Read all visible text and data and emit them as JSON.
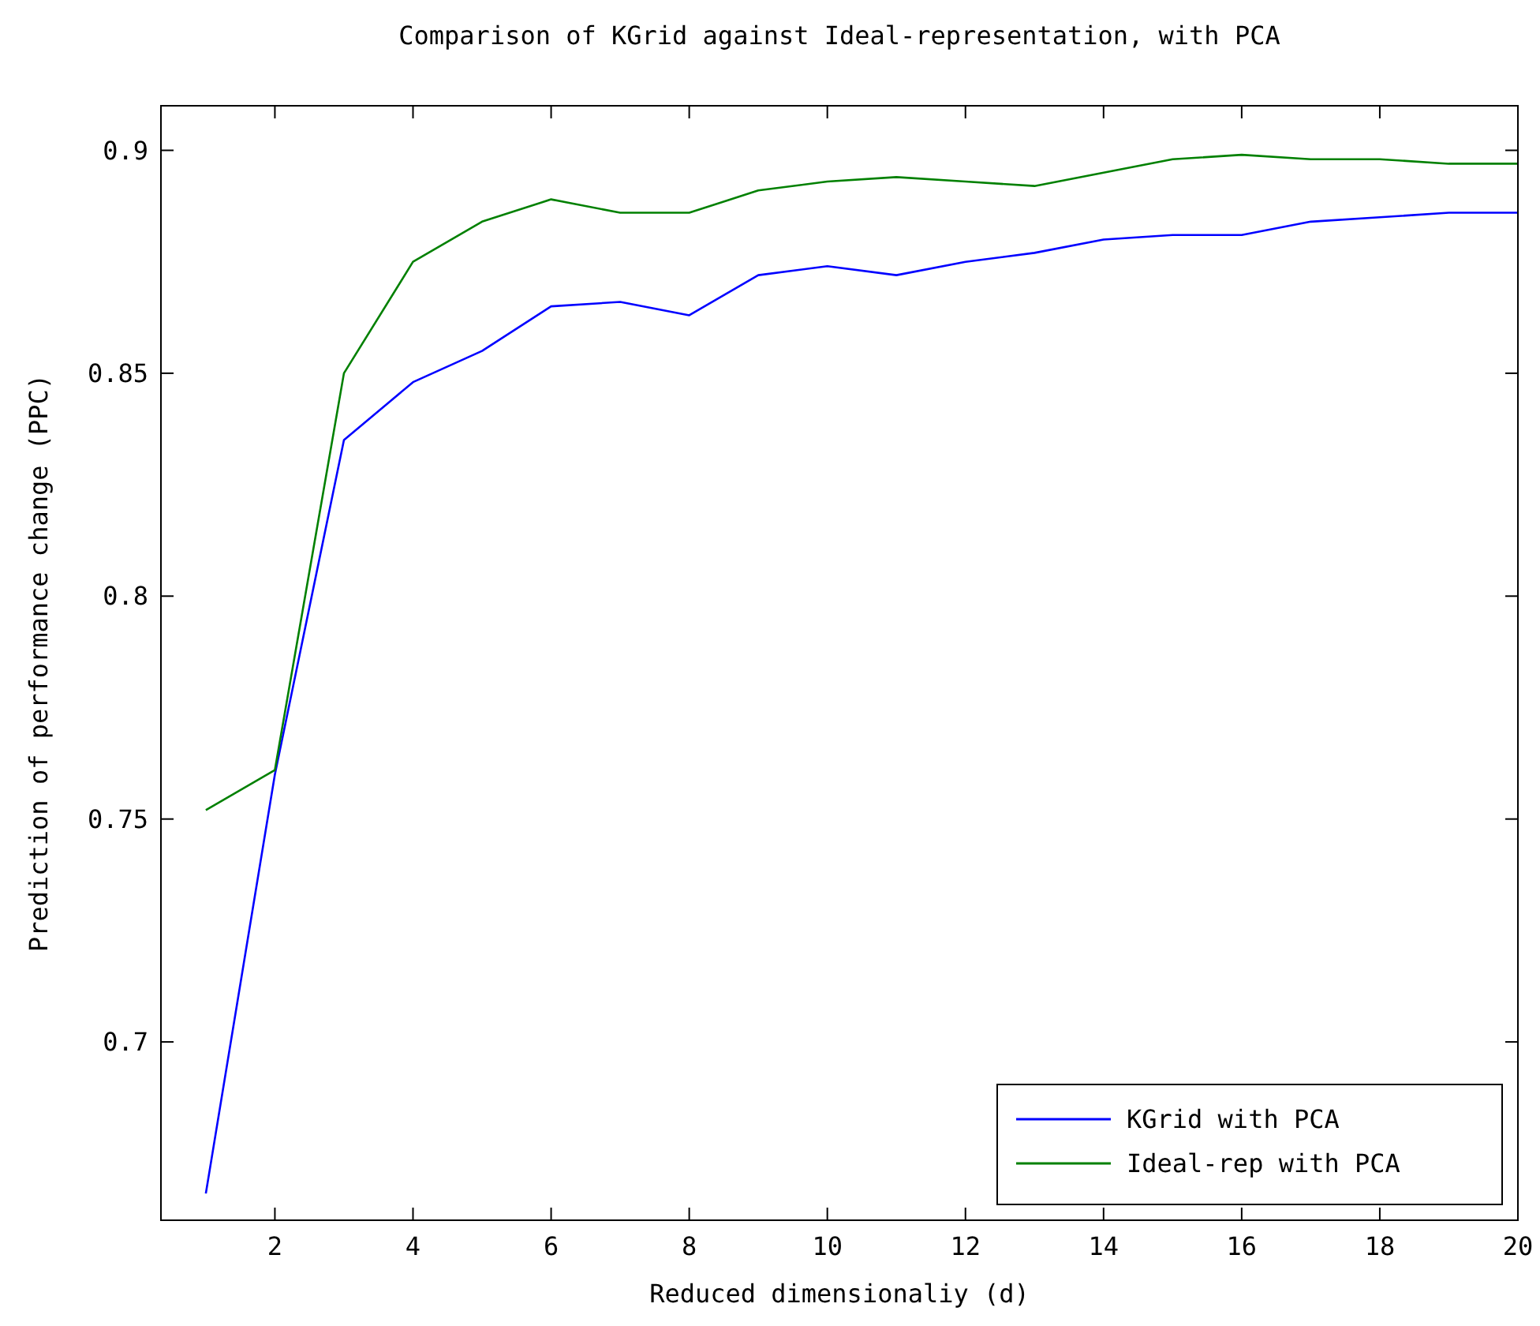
{
  "chart_data": {
    "type": "line",
    "title": "Comparison of KGrid against Ideal-representation, with PCA",
    "xlabel": "Reduced dimensionaliy (d)",
    "ylabel": "Prediction of performance change (PPC)",
    "x": [
      1,
      2,
      3,
      4,
      5,
      6,
      7,
      8,
      9,
      10,
      11,
      12,
      13,
      14,
      15,
      16,
      17,
      18,
      19,
      20
    ],
    "series": [
      {
        "name": "KGrid with PCA",
        "color": "#0000ff",
        "values": [
          0.666,
          0.76,
          0.835,
          0.848,
          0.855,
          0.865,
          0.866,
          0.863,
          0.872,
          0.874,
          0.872,
          0.875,
          0.877,
          0.88,
          0.881,
          0.881,
          0.884,
          0.885,
          0.886,
          0.886
        ]
      },
      {
        "name": "Ideal-rep with PCA",
        "color": "#008000",
        "values": [
          0.752,
          0.761,
          0.85,
          0.875,
          0.884,
          0.889,
          0.886,
          0.886,
          0.891,
          0.893,
          0.894,
          0.893,
          0.892,
          0.895,
          0.898,
          0.899,
          0.898,
          0.898,
          0.897,
          0.897
        ]
      }
    ],
    "xlim": [
      0.35,
      20
    ],
    "xticks": [
      2,
      4,
      6,
      8,
      10,
      12,
      14,
      16,
      18,
      20
    ],
    "ylim": [
      0.66,
      0.91
    ],
    "yticks": [
      {
        "value": 0.7,
        "label": "0.7"
      },
      {
        "value": 0.75,
        "label": "0.75"
      },
      {
        "value": 0.8,
        "label": "0.8"
      },
      {
        "value": 0.85,
        "label": "0.85"
      },
      {
        "value": 0.9,
        "label": "0.9"
      }
    ],
    "legend": "bottom right",
    "grid": false,
    "marker": "none",
    "line_style": "solid"
  }
}
